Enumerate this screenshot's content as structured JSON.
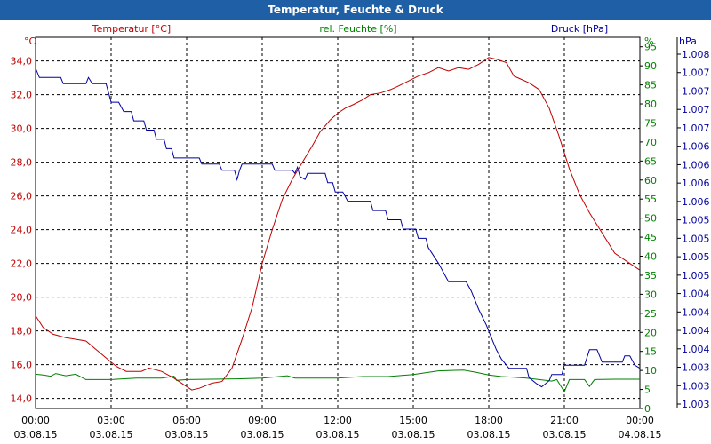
{
  "window_title": "Temperatur, Feuchte & Druck",
  "colors": {
    "temperature": "#c00000",
    "humidity": "#008000",
    "pressure": "#0000c0",
    "titlebar": "#1f5fa6"
  },
  "chart_data": {
    "type": "line",
    "title": "Temperatur, Feuchte & Druck",
    "x": {
      "ticks": [
        {
          "time": "00:00",
          "date": "03.08.15"
        },
        {
          "time": "03:00",
          "date": "03.08.15"
        },
        {
          "time": "06:00",
          "date": "03.08.15"
        },
        {
          "time": "09:00",
          "date": "03.08.15"
        },
        {
          "time": "12:00",
          "date": "03.08.15"
        },
        {
          "time": "15:00",
          "date": "03.08.15"
        },
        {
          "time": "18:00",
          "date": "03.08.15"
        },
        {
          "time": "21:00",
          "date": "03.08.15"
        },
        {
          "time": "00:00",
          "date": "04.08.15"
        }
      ],
      "range_hours": [
        0,
        24
      ]
    },
    "axes": {
      "temperature": {
        "label": "Temperatur [°C]",
        "unit": "°C",
        "range": [
          13.4,
          35.4
        ],
        "tick_labels": [
          "14,0",
          "16,0",
          "18,0",
          "20,0",
          "22,0",
          "24,0",
          "26,0",
          "28,0",
          "30,0",
          "32,0",
          "34,0"
        ]
      },
      "humidity": {
        "label": "rel. Feuchte [%]",
        "unit": "%",
        "range": [
          0,
          97.5
        ],
        "tick_labels": [
          "0",
          "5",
          "10",
          "15",
          "20",
          "25",
          "30",
          "35",
          "40",
          "45",
          "50",
          "55",
          "60",
          "65",
          "70",
          "75",
          "80",
          "85",
          "90",
          "95"
        ]
      },
      "pressure": {
        "label": "Druck [hPa]",
        "unit": "hPa",
        "range": [
          1002.5,
          1008.5
        ],
        "tick_labels": [
          "1.003",
          "1.003",
          "1.003",
          "1.004",
          "1.004",
          "1.004",
          "1.004",
          "1.005",
          "1.005",
          "1.005",
          "1.005",
          "1.006",
          "1.006",
          "1.006",
          "1.006",
          "1.007",
          "1.007",
          "1.007",
          "1.007",
          "1.008"
        ]
      }
    },
    "series": [
      {
        "name": "Temperatur",
        "axis": "temperature",
        "points": [
          [
            0,
            18.9
          ],
          [
            0.3,
            18.2
          ],
          [
            0.7,
            17.8
          ],
          [
            1.2,
            17.6
          ],
          [
            2.0,
            17.4
          ],
          [
            2.4,
            16.9
          ],
          [
            2.8,
            16.4
          ],
          [
            3.2,
            15.9
          ],
          [
            3.6,
            15.6
          ],
          [
            4.2,
            15.6
          ],
          [
            4.5,
            15.8
          ],
          [
            5.0,
            15.6
          ],
          [
            5.5,
            15.2
          ],
          [
            6.0,
            14.7
          ],
          [
            6.2,
            14.5
          ],
          [
            6.5,
            14.6
          ],
          [
            7.0,
            14.9
          ],
          [
            7.4,
            15.0
          ],
          [
            7.8,
            15.8
          ],
          [
            8.2,
            17.5
          ],
          [
            8.6,
            19.4
          ],
          [
            9.0,
            22.0
          ],
          [
            9.4,
            24.0
          ],
          [
            9.8,
            25.8
          ],
          [
            10.2,
            27.0
          ],
          [
            10.6,
            28.0
          ],
          [
            11.0,
            29.0
          ],
          [
            11.3,
            29.8
          ],
          [
            11.7,
            30.5
          ],
          [
            12.0,
            30.9
          ],
          [
            12.3,
            31.2
          ],
          [
            12.6,
            31.4
          ],
          [
            13.0,
            31.7
          ],
          [
            13.3,
            32.0
          ],
          [
            13.7,
            32.1
          ],
          [
            14.1,
            32.3
          ],
          [
            14.4,
            32.5
          ],
          [
            14.8,
            32.8
          ],
          [
            15.2,
            33.1
          ],
          [
            15.6,
            33.3
          ],
          [
            16.0,
            33.6
          ],
          [
            16.4,
            33.4
          ],
          [
            16.8,
            33.6
          ],
          [
            17.2,
            33.5
          ],
          [
            17.6,
            33.8
          ],
          [
            18.0,
            34.2
          ],
          [
            18.3,
            34.1
          ],
          [
            18.7,
            33.9
          ],
          [
            19.0,
            33.1
          ],
          [
            19.3,
            32.9
          ],
          [
            19.6,
            32.7
          ],
          [
            20.0,
            32.3
          ],
          [
            20.4,
            31.2
          ],
          [
            20.8,
            29.5
          ],
          [
            21.2,
            27.6
          ],
          [
            21.6,
            26.1
          ],
          [
            22.0,
            25.0
          ],
          [
            22.5,
            23.8
          ],
          [
            23.0,
            22.6
          ],
          [
            23.5,
            22.1
          ],
          [
            24.0,
            21.6
          ]
        ]
      },
      {
        "name": "rel. Feuchte",
        "axis": "humidity",
        "points": [
          [
            0,
            9
          ],
          [
            0.3,
            8.8
          ],
          [
            0.6,
            8.5
          ],
          [
            0.8,
            9.2
          ],
          [
            1.2,
            8.6
          ],
          [
            1.6,
            9.0
          ],
          [
            2.0,
            7.6
          ],
          [
            3.0,
            7.6
          ],
          [
            4.0,
            8.0
          ],
          [
            5.0,
            8.0
          ],
          [
            5.5,
            8.5
          ],
          [
            5.6,
            7.4
          ],
          [
            6.0,
            7.6
          ],
          [
            7.0,
            7.7
          ],
          [
            8.0,
            7.8
          ],
          [
            9.0,
            8.0
          ],
          [
            10.0,
            8.6
          ],
          [
            10.3,
            8.0
          ],
          [
            11.0,
            8.0
          ],
          [
            12.0,
            8.0
          ],
          [
            13.0,
            8.4
          ],
          [
            14.0,
            8.4
          ],
          [
            15.0,
            8.9
          ],
          [
            16.0,
            9.9
          ],
          [
            17.0,
            10.1
          ],
          [
            17.5,
            9.5
          ],
          [
            18.0,
            8.8
          ],
          [
            18.5,
            8.4
          ],
          [
            19.0,
            8.2
          ],
          [
            19.5,
            8.0
          ],
          [
            20.0,
            7.6
          ],
          [
            20.5,
            7.2
          ],
          [
            20.7,
            7.6
          ],
          [
            21.0,
            4.4
          ],
          [
            21.2,
            7.6
          ],
          [
            21.8,
            7.6
          ],
          [
            22.0,
            5.8
          ],
          [
            22.2,
            7.6
          ],
          [
            23.0,
            7.7
          ],
          [
            24.0,
            7.7
          ]
        ]
      },
      {
        "name": "Druck",
        "axis": "pressure",
        "points": [
          [
            0,
            1008.0
          ],
          [
            0.15,
            1007.85
          ],
          [
            1.0,
            1007.85
          ],
          [
            1.1,
            1007.75
          ],
          [
            2.0,
            1007.75
          ],
          [
            2.1,
            1007.85
          ],
          [
            2.25,
            1007.75
          ],
          [
            2.8,
            1007.75
          ],
          [
            2.9,
            1007.6
          ],
          [
            3.0,
            1007.45
          ],
          [
            3.3,
            1007.45
          ],
          [
            3.5,
            1007.3
          ],
          [
            3.8,
            1007.3
          ],
          [
            3.9,
            1007.15
          ],
          [
            4.3,
            1007.15
          ],
          [
            4.4,
            1007.0
          ],
          [
            4.7,
            1007.0
          ],
          [
            4.8,
            1006.85
          ],
          [
            5.1,
            1006.85
          ],
          [
            5.2,
            1006.7
          ],
          [
            5.4,
            1006.7
          ],
          [
            5.5,
            1006.55
          ],
          [
            6.5,
            1006.55
          ],
          [
            6.6,
            1006.45
          ],
          [
            7.3,
            1006.45
          ],
          [
            7.4,
            1006.35
          ],
          [
            7.9,
            1006.35
          ],
          [
            8.0,
            1006.2
          ],
          [
            8.1,
            1006.35
          ],
          [
            8.2,
            1006.45
          ],
          [
            9.4,
            1006.45
          ],
          [
            9.5,
            1006.35
          ],
          [
            10.2,
            1006.35
          ],
          [
            10.3,
            1006.3
          ],
          [
            10.4,
            1006.4
          ],
          [
            10.5,
            1006.25
          ],
          [
            10.7,
            1006.2
          ],
          [
            10.8,
            1006.3
          ],
          [
            11.5,
            1006.3
          ],
          [
            11.6,
            1006.15
          ],
          [
            11.8,
            1006.15
          ],
          [
            11.9,
            1006.0
          ],
          [
            12.2,
            1006.0
          ],
          [
            12.4,
            1005.85
          ],
          [
            13.3,
            1005.85
          ],
          [
            13.4,
            1005.7
          ],
          [
            13.9,
            1005.7
          ],
          [
            14.0,
            1005.55
          ],
          [
            14.5,
            1005.55
          ],
          [
            14.6,
            1005.4
          ],
          [
            15.1,
            1005.4
          ],
          [
            15.2,
            1005.25
          ],
          [
            15.5,
            1005.25
          ],
          [
            15.6,
            1005.1
          ],
          [
            16.0,
            1004.85
          ],
          [
            16.2,
            1004.7
          ],
          [
            16.4,
            1004.55
          ],
          [
            17.1,
            1004.55
          ],
          [
            17.3,
            1004.4
          ],
          [
            17.6,
            1004.1
          ],
          [
            17.9,
            1003.85
          ],
          [
            18.1,
            1003.65
          ],
          [
            18.3,
            1003.45
          ],
          [
            18.5,
            1003.3
          ],
          [
            18.8,
            1003.15
          ],
          [
            19.5,
            1003.15
          ],
          [
            19.6,
            1003.0
          ],
          [
            19.9,
            1002.9
          ],
          [
            20.1,
            1002.85
          ],
          [
            20.4,
            1002.95
          ],
          [
            20.5,
            1003.05
          ],
          [
            20.9,
            1003.05
          ],
          [
            21.0,
            1003.2
          ],
          [
            21.8,
            1003.2
          ],
          [
            22.0,
            1003.45
          ],
          [
            22.3,
            1003.45
          ],
          [
            22.5,
            1003.25
          ],
          [
            23.3,
            1003.25
          ],
          [
            23.4,
            1003.35
          ],
          [
            23.6,
            1003.35
          ],
          [
            23.8,
            1003.2
          ],
          [
            24.0,
            1003.15
          ]
        ]
      }
    ]
  }
}
